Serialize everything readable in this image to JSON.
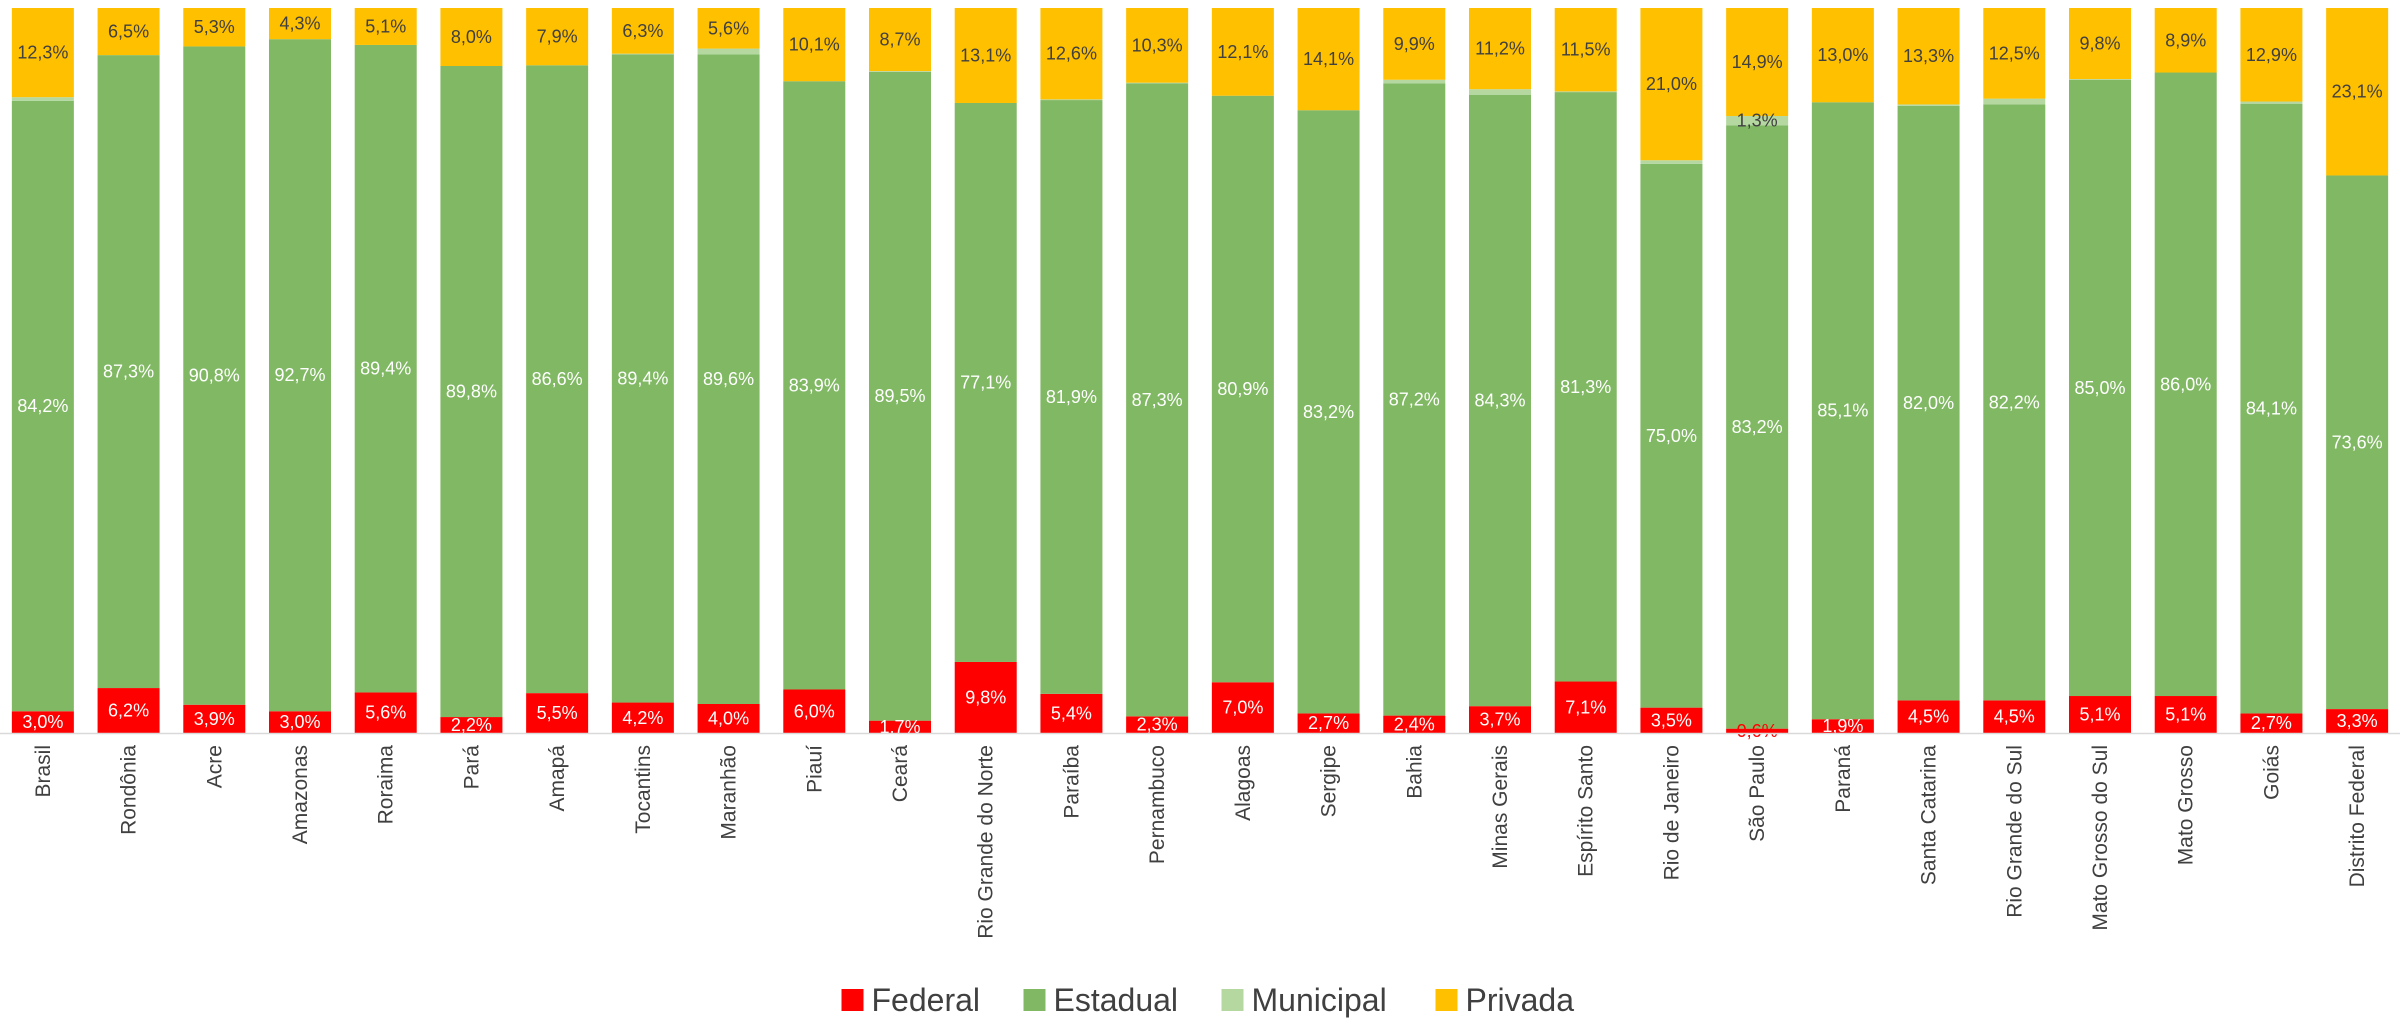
{
  "chart_data": {
    "type": "bar",
    "stacked": true,
    "normalized": true,
    "title": "",
    "xlabel": "",
    "ylabel": "",
    "ylim": [
      0,
      100
    ],
    "grid": false,
    "legend_position": "bottom",
    "categories": [
      "Brasil",
      "Rondônia",
      "Acre",
      "Amazonas",
      "Roraima",
      "Pará",
      "Amapá",
      "Tocantins",
      "Maranhão",
      "Piauí",
      "Ceará",
      "Rio Grande do Norte",
      "Paraíba",
      "Pernambuco",
      "Alagoas",
      "Sergipe",
      "Bahia",
      "Minas Gerais",
      "Espírito Santo",
      "Rio de Janeiro",
      "São Paulo",
      "Paraná",
      "Santa Catarina",
      "Rio Grande do Sul",
      "Mato Grosso do Sul",
      "Mato Grosso",
      "Goiás",
      "Distrito Federal"
    ],
    "series": [
      {
        "name": "Federal",
        "color": "#FF0000",
        "label_color": "#FFFFFF",
        "values": [
          3.0,
          6.2,
          3.9,
          3.0,
          5.6,
          2.2,
          5.5,
          4.2,
          4.0,
          6.0,
          1.7,
          9.8,
          5.4,
          2.3,
          7.0,
          2.7,
          2.4,
          3.7,
          7.1,
          3.5,
          0.6,
          1.9,
          4.5,
          4.5,
          5.1,
          5.1,
          2.7,
          3.3
        ],
        "labels": [
          "3,0%",
          "6,2%",
          "3,9%",
          "3,0%",
          "5,6%",
          "2,2%",
          "5,5%",
          "4,2%",
          "4,0%",
          "6,0%",
          "1,7%",
          "9,8%",
          "5,4%",
          "2,3%",
          "7,0%",
          "2,7%",
          "2,4%",
          "3,7%",
          "7,1%",
          "3,5%",
          "0,6%",
          "1,9%",
          "4,5%",
          "4,5%",
          "5,1%",
          "5,1%",
          "2,7%",
          "3,3%"
        ]
      },
      {
        "name": "Estadual",
        "color": "#80B864",
        "label_color": "#FFFFFF",
        "values": [
          84.2,
          87.3,
          90.8,
          92.7,
          89.4,
          89.8,
          86.6,
          89.4,
          89.6,
          83.9,
          89.5,
          77.1,
          81.9,
          87.3,
          80.9,
          83.2,
          87.2,
          84.3,
          81.3,
          75.0,
          83.2,
          85.1,
          82.0,
          82.2,
          85.0,
          86.0,
          84.1,
          73.6
        ],
        "labels": [
          "84,2%",
          "87,3%",
          "90,8%",
          "92,7%",
          "89,4%",
          "89,8%",
          "86,6%",
          "89,4%",
          "89,6%",
          "83,9%",
          "89,5%",
          "77,1%",
          "81,9%",
          "87,3%",
          "80,9%",
          "83,2%",
          "87,2%",
          "84,3%",
          "81,3%",
          "75,0%",
          "83,2%",
          "85,1%",
          "82,0%",
          "82,2%",
          "85,0%",
          "86,0%",
          "84,1%",
          "73,6%"
        ]
      },
      {
        "name": "Municipal",
        "color": "#B4D8A0",
        "label_color": "#404040",
        "values": [
          0.5,
          0.0,
          0.0,
          0.0,
          0.0,
          0.0,
          0.0,
          0.1,
          0.8,
          0.0,
          0.1,
          0.0,
          0.1,
          0.1,
          0.0,
          0.0,
          0.5,
          0.8,
          0.1,
          0.5,
          1.3,
          0.0,
          0.2,
          0.8,
          0.1,
          0.0,
          0.3,
          0.0
        ],
        "labels": [
          "",
          "",
          "",
          "",
          "",
          "",
          "",
          "",
          "",
          "",
          "",
          "",
          "",
          "",
          "",
          "",
          "",
          "",
          "",
          "",
          "1,3%",
          "",
          "",
          "",
          "",
          "",
          "",
          ""
        ]
      },
      {
        "name": "Privada",
        "color": "#FFC000",
        "label_color": "#404040",
        "values": [
          12.3,
          6.5,
          5.3,
          4.3,
          5.1,
          8.0,
          7.9,
          6.3,
          5.6,
          10.1,
          8.7,
          13.1,
          12.6,
          10.3,
          12.1,
          14.1,
          9.9,
          11.2,
          11.5,
          21.0,
          14.9,
          13.0,
          13.3,
          12.5,
          9.8,
          8.9,
          12.9,
          23.1
        ],
        "labels": [
          "12,3%",
          "6,5%",
          "5,3%",
          "4,3%",
          "5,1%",
          "8,0%",
          "7,9%",
          "6,3%",
          "5,6%",
          "10,1%",
          "8,7%",
          "13,1%",
          "12,6%",
          "10,3%",
          "12,1%",
          "14,1%",
          "9,9%",
          "11,2%",
          "11,5%",
          "21,0%",
          "14,9%",
          "13,0%",
          "13,3%",
          "12,5%",
          "9,8%",
          "8,9%",
          "12,9%",
          "23,1%"
        ]
      }
    ]
  }
}
